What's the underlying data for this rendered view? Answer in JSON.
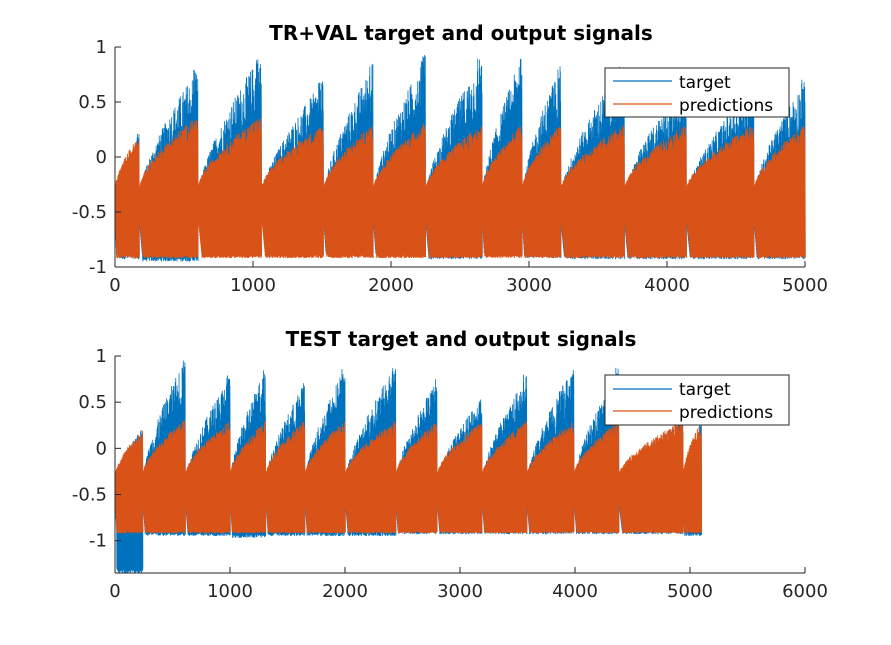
{
  "colors": {
    "target": "#0072BD",
    "predictions": "#D95319",
    "axis": "#262626",
    "background": "#ffffff"
  },
  "chart_data": [
    {
      "type": "line",
      "title": "TR+VAL target and output signals",
      "xlim": [
        0,
        5000
      ],
      "ylim": [
        -1,
        1
      ],
      "xticks": [
        0,
        1000,
        2000,
        3000,
        4000,
        5000
      ],
      "xtick_labels": [
        "0",
        "1000",
        "2000",
        "3000",
        "4000",
        "5000"
      ],
      "yticks": [
        1,
        0.5,
        0,
        -0.5,
        -1
      ],
      "ytick_labels": [
        "1",
        "0.5",
        "0",
        "-0.5",
        "-1"
      ],
      "legend": {
        "position": "top-right",
        "entries": [
          "target",
          "predictions"
        ]
      },
      "grid": false,
      "series": [
        {
          "name": "target",
          "color": "#0072BD",
          "cycle_starts": [
            0,
            175,
            600,
            1060,
            1510,
            1870,
            2250,
            2660,
            2950,
            3230,
            3690,
            4140,
            4630,
            5000
          ],
          "cycle_peaks": [
            0.22,
            0.82,
            0.95,
            0.7,
            0.85,
            0.93,
            0.91,
            0.93,
            0.86,
            0.88,
            0.73,
            0.68,
            0.72,
            0.96
          ],
          "cycle_lows": [
            -0.93,
            -0.95,
            -0.38,
            -0.45,
            -0.88,
            -0.9,
            -0.93,
            -0.9,
            -0.92,
            -0.93,
            -0.93,
            -0.93,
            -0.93
          ],
          "y_range": [
            -1,
            1
          ]
        },
        {
          "name": "predictions",
          "color": "#D95319",
          "cycle_starts": [
            0,
            175,
            600,
            1060,
            1510,
            1870,
            2250,
            2660,
            2950,
            3230,
            3690,
            4140,
            4630,
            5000
          ],
          "cycle_peaks": [
            0.2,
            0.38,
            0.38,
            0.3,
            0.3,
            0.32,
            0.3,
            0.3,
            0.3,
            0.3,
            0.3,
            0.3,
            0.3,
            0.3
          ],
          "y_range": [
            -0.96,
            0.4
          ]
        }
      ]
    },
    {
      "type": "line",
      "title": "TEST target and output signals",
      "xlim": [
        0,
        6000
      ],
      "ylim": [
        -1.35,
        1
      ],
      "xticks": [
        0,
        1000,
        2000,
        3000,
        4000,
        5000,
        6000
      ],
      "xtick_labels": [
        "0",
        "1000",
        "2000",
        "3000",
        "4000",
        "5000",
        "6000"
      ],
      "yticks": [
        1,
        0.5,
        0,
        -0.5,
        -1
      ],
      "ytick_labels": [
        "1",
        "0.5",
        "0",
        "-0.5",
        "-1"
      ],
      "legend": {
        "position": "top-right",
        "entries": [
          "target",
          "predictions"
        ]
      },
      "grid": false,
      "series": [
        {
          "name": "target",
          "color": "#0072BD",
          "cycle_starts": [
            0,
            240,
            610,
            1000,
            1310,
            1650,
            2000,
            2440,
            2800,
            3190,
            3580,
            3990,
            4380,
            4940,
            5100
          ],
          "cycle_peaks": [
            0.22,
            1.0,
            0.8,
            0.9,
            0.72,
            0.9,
            0.9,
            0.75,
            0.55,
            0.8,
            0.9,
            0.88,
            0.3,
            0.3
          ],
          "cycle_lows": [
            -1.35,
            -0.95,
            -0.95,
            -0.97,
            -0.95,
            -0.95,
            -0.95,
            -0.93,
            -0.93,
            -0.93,
            -0.93,
            -0.93,
            -0.93,
            -0.95
          ],
          "y_range": [
            -1.35,
            1
          ]
        },
        {
          "name": "predictions",
          "color": "#D95319",
          "cycle_starts": [
            0,
            240,
            610,
            1000,
            1310,
            1650,
            2000,
            2440,
            2800,
            3190,
            3580,
            3990,
            4380,
            4940,
            5100
          ],
          "cycle_peaks": [
            0.2,
            0.32,
            0.3,
            0.3,
            0.3,
            0.3,
            0.3,
            0.3,
            0.3,
            0.3,
            0.3,
            0.3,
            0.3,
            0.3
          ],
          "y_range": [
            -0.95,
            0.35
          ]
        }
      ]
    }
  ]
}
